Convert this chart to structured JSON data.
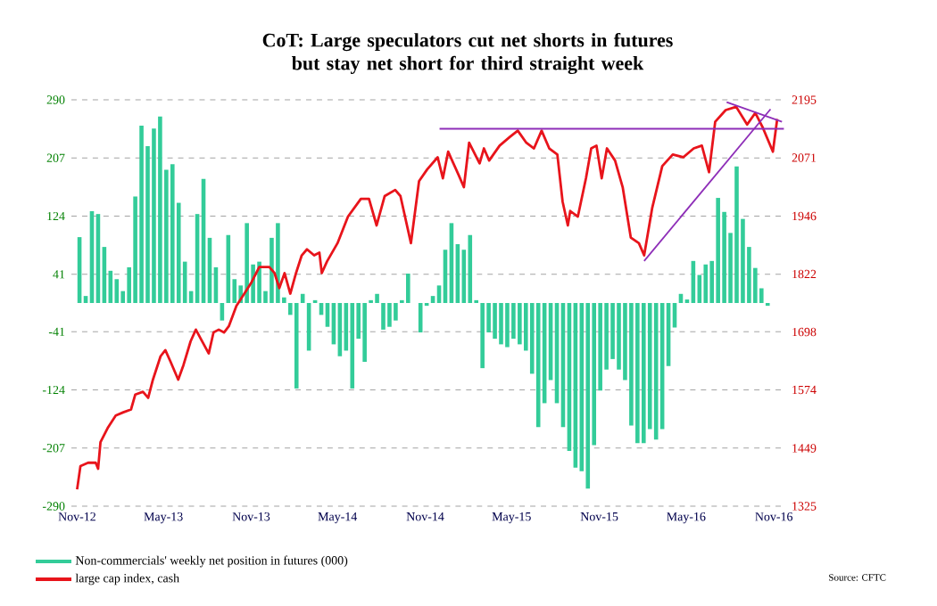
{
  "chart_data": {
    "type": "bar",
    "title": "CoT: Large speculators cut net shorts in futures but stay net short for third straight week",
    "annotations": [
      "Source: CFTC"
    ],
    "xlim": [
      "2012-10-20",
      "2016-11-25"
    ],
    "xticks": [
      {
        "value": "2012-11-01",
        "label": "Nov-12"
      },
      {
        "value": "2013-05-01",
        "label": "May-13"
      },
      {
        "value": "2013-11-01",
        "label": "Nov-13"
      },
      {
        "value": "2014-05-01",
        "label": "May-14"
      },
      {
        "value": "2014-11-01",
        "label": "Nov-14"
      },
      {
        "value": "2015-05-01",
        "label": "May-15"
      },
      {
        "value": "2015-11-01",
        "label": "Nov-15"
      },
      {
        "value": "2016-05-01",
        "label": "May-16"
      },
      {
        "value": "2016-11-01",
        "label": "Nov-16"
      }
    ],
    "ylim": [
      -290,
      290
    ],
    "yticks": [
      -290,
      -207,
      -124,
      -41,
      41,
      124,
      207,
      290
    ],
    "y2lim": [
      1325,
      2195
    ],
    "y2ticks": [
      1325,
      1449,
      1574,
      1698,
      1822,
      1946,
      2071,
      2195
    ],
    "grid": "y",
    "legend": "bottom left",
    "series": [
      {
        "name": "Non-commercials' weekly net position in futures (000)",
        "color": "#33cc99",
        "x": [
          "2012-11-06",
          "2012-11-19",
          "2012-12-02",
          "2012-12-15",
          "2012-12-28",
          "2013-01-10",
          "2013-01-23",
          "2013-02-05",
          "2013-02-18",
          "2013-03-03",
          "2013-03-16",
          "2013-03-29",
          "2013-04-11",
          "2013-04-24",
          "2013-05-07",
          "2013-05-20",
          "2013-06-02",
          "2013-06-15",
          "2013-06-28",
          "2013-07-11",
          "2013-07-24",
          "2013-08-06",
          "2013-08-19",
          "2013-09-01",
          "2013-09-14",
          "2013-09-27",
          "2013-10-10",
          "2013-10-23",
          "2013-11-05",
          "2013-11-18",
          "2013-12-01",
          "2013-12-14",
          "2013-12-27",
          "2014-01-09",
          "2014-01-22",
          "2014-02-04",
          "2014-02-17",
          "2014-03-02",
          "2014-03-15",
          "2014-03-28",
          "2014-04-10",
          "2014-04-23",
          "2014-05-06",
          "2014-05-19",
          "2014-06-01",
          "2014-06-14",
          "2014-06-27",
          "2014-07-10",
          "2014-07-23",
          "2014-08-05",
          "2014-08-18",
          "2014-08-31",
          "2014-09-13",
          "2014-09-26",
          "2014-10-09",
          "2014-10-22",
          "2014-11-04",
          "2014-11-17",
          "2014-11-30",
          "2014-12-13",
          "2014-12-26",
          "2015-01-08",
          "2015-01-21",
          "2015-02-03",
          "2015-02-16",
          "2015-03-01",
          "2015-03-14",
          "2015-03-27",
          "2015-04-09",
          "2015-04-22",
          "2015-05-05",
          "2015-05-18",
          "2015-05-31",
          "2015-06-13",
          "2015-06-26",
          "2015-07-09",
          "2015-07-22",
          "2015-08-04",
          "2015-08-17",
          "2015-08-30",
          "2015-09-12",
          "2015-09-25",
          "2015-10-08",
          "2015-10-21",
          "2015-11-03",
          "2015-11-16",
          "2015-11-29",
          "2015-12-12",
          "2015-12-25",
          "2016-01-07",
          "2016-01-20",
          "2016-02-02",
          "2016-02-15",
          "2016-02-28",
          "2016-03-12",
          "2016-03-25",
          "2016-04-07",
          "2016-04-20",
          "2016-05-03",
          "2016-05-16",
          "2016-05-29",
          "2016-06-11",
          "2016-06-24",
          "2016-07-07",
          "2016-07-20",
          "2016-08-02",
          "2016-08-15",
          "2016-08-28",
          "2016-09-10",
          "2016-09-23",
          "2016-10-06",
          "2016-10-19"
        ],
        "values": [
          94,
          10,
          131,
          127,
          80,
          46,
          34,
          17,
          51,
          152,
          253,
          224,
          249,
          266,
          190,
          198,
          143,
          59,
          17,
          127,
          177,
          93,
          51,
          -25,
          97,
          34,
          25,
          114,
          55,
          59,
          17,
          93,
          114,
          8,
          -17,
          -122,
          13,
          -68,
          4,
          -17,
          -34,
          -59,
          -76,
          -68,
          -122,
          -51,
          -84,
          4,
          13,
          -38,
          -34,
          -25,
          4,
          42,
          0,
          -42,
          -4,
          10,
          25,
          76,
          114,
          84,
          76,
          97,
          4,
          -93,
          -42,
          -51,
          -59,
          -63,
          -51,
          -59,
          -68,
          -101,
          -177,
          -143,
          -110,
          -143,
          -177,
          -211,
          -235,
          -240,
          -265,
          -203,
          -125,
          -95,
          -80,
          -95,
          -110,
          -175,
          -200,
          -200,
          -180,
          -195,
          -180,
          -90,
          -35,
          13,
          5,
          60,
          40,
          55,
          60,
          150,
          130,
          100,
          195,
          120,
          80,
          50,
          21,
          -4
        ]
      },
      {
        "name": "large cap index, cash",
        "type": "line",
        "axis": "y2",
        "color": "#e8141b",
        "x": [
          "2012-11-01",
          "2012-11-08",
          "2012-11-24",
          "2012-12-10",
          "2012-12-15",
          "2012-12-20",
          "2013-01-05",
          "2013-01-21",
          "2013-02-06",
          "2013-02-22",
          "2013-03-03",
          "2013-03-19",
          "2013-03-30",
          "2013-04-09",
          "2013-04-25",
          "2013-05-05",
          "2013-05-16",
          "2013-06-01",
          "2013-06-12",
          "2013-06-27",
          "2013-07-08",
          "2013-07-18",
          "2013-08-04",
          "2013-08-14",
          "2013-08-25",
          "2013-09-05",
          "2013-09-15",
          "2013-10-01",
          "2013-10-17",
          "2013-11-02",
          "2013-11-18",
          "2013-11-29",
          "2013-12-09",
          "2013-12-20",
          "2013-12-30",
          "2014-01-10",
          "2014-01-22",
          "2014-02-03",
          "2014-02-15",
          "2014-02-26",
          "2014-03-13",
          "2014-03-24",
          "2014-03-29",
          "2014-04-09",
          "2014-05-01",
          "2014-05-23",
          "2014-06-19",
          "2014-07-06",
          "2014-07-22",
          "2014-08-08",
          "2014-08-30",
          "2014-09-10",
          "2014-10-02",
          "2014-10-19",
          "2014-11-05",
          "2014-11-27",
          "2014-12-08",
          "2014-12-19",
          "2015-01-10",
          "2015-01-21",
          "2015-02-01",
          "2015-02-23",
          "2015-03-04",
          "2015-03-15",
          "2015-04-06",
          "2015-04-28",
          "2015-05-14",
          "2015-06-01",
          "2015-06-17",
          "2015-07-03",
          "2015-07-19",
          "2015-08-05",
          "2015-08-16",
          "2015-08-27",
          "2015-09-01",
          "2015-09-17",
          "2015-10-04",
          "2015-10-15",
          "2015-10-26",
          "2015-11-06",
          "2015-11-17",
          "2015-12-04",
          "2015-12-20",
          "2016-01-06",
          "2016-01-23",
          "2016-02-03",
          "2016-02-20",
          "2016-03-12",
          "2016-04-03",
          "2016-04-25",
          "2016-05-17",
          "2016-06-03",
          "2016-06-18",
          "2016-07-01",
          "2016-07-23",
          "2016-08-14",
          "2016-09-06",
          "2016-09-23",
          "2016-10-09",
          "2016-10-30",
          "2016-11-08"
        ],
        "values": [
          1361,
          1411,
          1418,
          1418,
          1405,
          1462,
          1494,
          1519,
          1526,
          1532,
          1564,
          1570,
          1557,
          1596,
          1646,
          1659,
          1634,
          1596,
          1627,
          1678,
          1703,
          1684,
          1652,
          1697,
          1703,
          1697,
          1710,
          1754,
          1779,
          1805,
          1837,
          1837,
          1837,
          1824,
          1792,
          1824,
          1780,
          1824,
          1862,
          1875,
          1862,
          1868,
          1824,
          1849,
          1888,
          1945,
          1983,
          1983,
          1926,
          1989,
          2002,
          1989,
          1888,
          2021,
          2046,
          2072,
          2027,
          2084,
          2034,
          2008,
          2103,
          2059,
          2091,
          2065,
          2097,
          2116,
          2129,
          2103,
          2091,
          2129,
          2091,
          2078,
          1977,
          1926,
          1957,
          1945,
          2027,
          2091,
          2097,
          2027,
          2091,
          2065,
          2008,
          1900,
          1888,
          1862,
          1964,
          2053,
          2078,
          2072,
          2091,
          2097,
          2040,
          2148,
          2173,
          2180,
          2142,
          2167,
          2135,
          2084,
          2154
        ]
      },
      {
        "type": "line",
        "axis": "y2",
        "color": "#8e2eb8",
        "x": [
          "2014-12-01",
          "2016-11-22"
        ],
        "values": [
          2133,
          2133
        ]
      },
      {
        "type": "line",
        "axis": "y2",
        "color": "#8e2eb8",
        "x": [
          "2016-02-03",
          "2016-10-25"
        ],
        "values": [
          1850,
          2175
        ]
      },
      {
        "type": "line",
        "axis": "y2",
        "color": "#8e2eb8",
        "x": [
          "2016-07-25",
          "2016-11-18"
        ],
        "values": [
          2190,
          2148
        ]
      }
    ]
  }
}
